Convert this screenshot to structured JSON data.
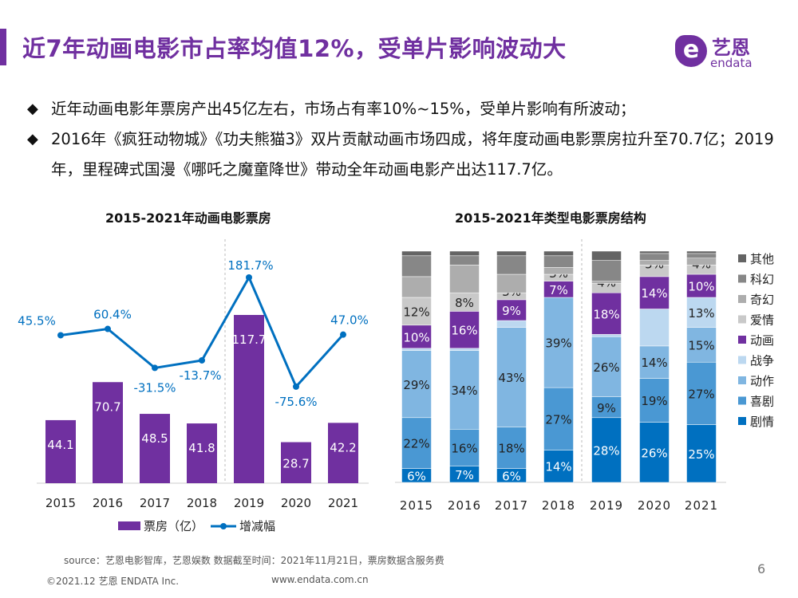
{
  "header": {
    "title": "近7年动画电影市占率均值12%，受单片影响波动大",
    "logo_cn": "艺恩",
    "logo_en": "endata"
  },
  "bullets": [
    "近年动画电影年票房产出45亿左右，市场占有率10%~15%，受单片影响有所波动；",
    "2016年《疯狂动物城》《功夫熊猫3》双片贡献动画市场四成，将年度动画电影票房拉升至70.7亿；2019年，里程碑式国漫《哪吒之魔童降世》带动全年动画电影产出达117.7亿。"
  ],
  "chart_data": [
    {
      "type": "bar+line",
      "title": "2015-2021年动画电影票房",
      "categories": [
        "2015",
        "2016",
        "2017",
        "2018",
        "2019",
        "2020",
        "2021"
      ],
      "series": [
        {
          "name": "票房（亿）",
          "type": "bar",
          "color": "#7030a0",
          "values": [
            44.1,
            70.7,
            48.5,
            41.8,
            117.7,
            28.7,
            42.2
          ]
        },
        {
          "name": "增减幅",
          "type": "line",
          "color": "#0070c0",
          "values": [
            45.5,
            60.4,
            -31.5,
            -13.7,
            181.7,
            -75.6,
            47.0
          ],
          "labels": [
            "45.5%",
            "60.4%",
            "-31.5%",
            "-13.7%",
            "181.7%",
            "-75.6%",
            "47.0%"
          ]
        }
      ],
      "legend": "bottom"
    },
    {
      "type": "stacked-bar",
      "title": "2015-2021年类型电影票房结构",
      "categories": [
        "2015",
        "2016",
        "2017",
        "2018",
        "2019",
        "2020",
        "2021"
      ],
      "series": [
        {
          "name": "剧情",
          "color": "#0070c0",
          "values": [
            6,
            7,
            6,
            14,
            28,
            26,
            25
          ],
          "labels": [
            "6%",
            "7%",
            "6%",
            "14%",
            "28%",
            "26%",
            "25%"
          ]
        },
        {
          "name": "喜剧",
          "color": "#4a98d3",
          "values": [
            22,
            16,
            18,
            27,
            9,
            19,
            27
          ],
          "labels": [
            "22%",
            "16%",
            "18%",
            "27%",
            "9%",
            "19%",
            "27%"
          ]
        },
        {
          "name": "动作",
          "color": "#80b6e1",
          "values": [
            29,
            34,
            43,
            39,
            26,
            14,
            15
          ],
          "labels": [
            "29%",
            "34%",
            "43%",
            "39%",
            "26%",
            "14%",
            "15%"
          ]
        },
        {
          "name": "战争",
          "color": "#bcd8f0",
          "values": [
            1,
            1,
            3,
            0,
            1,
            16,
            13
          ],
          "labels": [
            "",
            "",
            "",
            "",
            "",
            "",
            "13%"
          ]
        },
        {
          "name": "动画",
          "color": "#7030a0",
          "values": [
            10,
            16,
            9,
            7,
            18,
            14,
            10
          ],
          "labels": [
            "10%",
            "16%",
            "9%",
            "7%",
            "18%",
            "14%",
            "10%"
          ]
        },
        {
          "name": "爱情",
          "color": "#c9c9c9",
          "values": [
            12,
            8,
            3,
            3,
            4,
            5,
            4
          ],
          "labels": [
            "12%",
            "8%",
            "3%",
            "3%",
            "4%",
            "5%",
            "4%"
          ]
        },
        {
          "name": "奇幻",
          "color": "#adadad",
          "values": [
            9,
            12,
            8,
            3,
            1,
            2,
            3
          ],
          "labels": [
            "",
            "",
            "",
            "",
            "",
            "",
            ""
          ]
        },
        {
          "name": "科幻",
          "color": "#878787",
          "values": [
            9,
            4,
            8,
            5,
            9,
            3,
            2
          ],
          "labels": [
            "",
            "",
            "",
            "",
            "",
            "",
            ""
          ]
        },
        {
          "name": "其他",
          "color": "#646464",
          "values": [
            2,
            2,
            2,
            2,
            4,
            1,
            1
          ],
          "labels": [
            "",
            "",
            "",
            "",
            "",
            "",
            ""
          ]
        }
      ],
      "ylim": [
        0,
        100
      ],
      "legend": "right"
    }
  ],
  "footer": {
    "source": "source：艺恩电影智库，艺恩娱数      数据截至时间：2021年11月21日，票房数据含服务费",
    "copyright": "©2021.12 艺恩 ENDATA Inc.",
    "website": "www.endata.com.cn",
    "page": "6"
  }
}
